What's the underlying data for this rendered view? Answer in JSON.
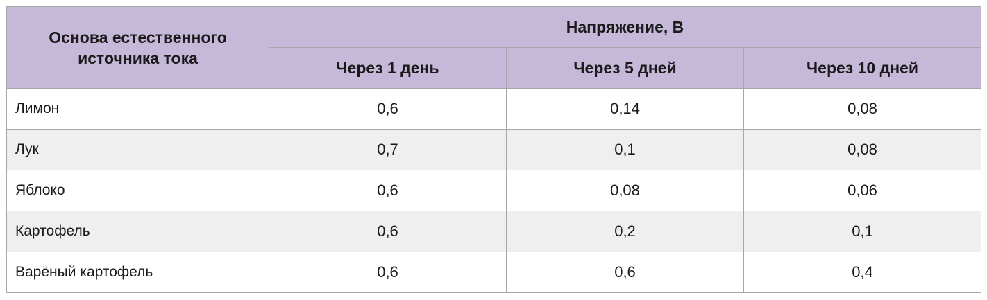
{
  "table": {
    "header": {
      "first": "Основа естественного источника тока",
      "group": "Напряжение, В",
      "columns": [
        "Через 1 день",
        "Через 5 дней",
        "Через 10 дней"
      ]
    },
    "rows": [
      [
        "Лимон",
        "0,6",
        "0,14",
        "0,08"
      ],
      [
        "Лук",
        "0,7",
        "0,1",
        "0,08"
      ],
      [
        "Яблоко",
        "0,6",
        "0,08",
        "0,06"
      ],
      [
        "Картофель",
        "0,6",
        "0,2",
        "0,1"
      ],
      [
        "Варёный картофель",
        "0,6",
        "0,6",
        "0,4"
      ]
    ]
  }
}
